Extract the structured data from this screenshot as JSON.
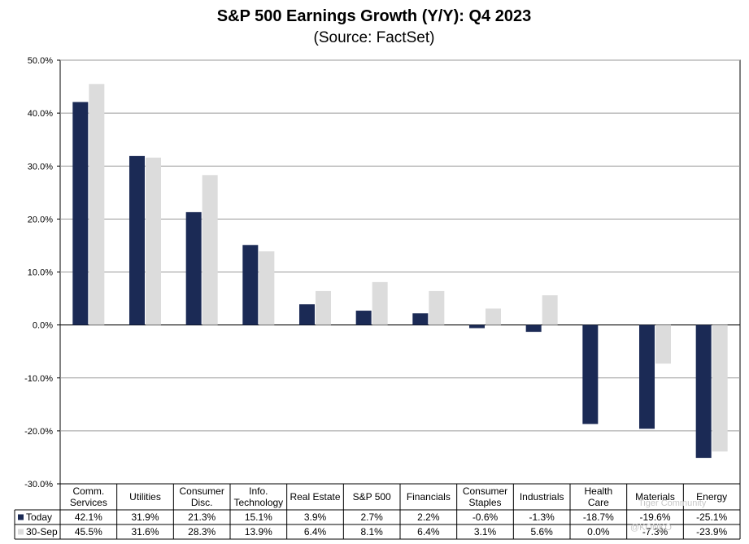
{
  "chart_data": {
    "type": "bar",
    "title": "S&P 500 Earnings Growth (Y/Y): Q4 2023",
    "subtitle": "(Source: FactSet)",
    "categories": [
      [
        "Comm.",
        "Services"
      ],
      [
        "Utilities"
      ],
      [
        "Consumer",
        "Disc."
      ],
      [
        "Info.",
        "Technology"
      ],
      [
        "Real Estate"
      ],
      [
        "S&P 500"
      ],
      [
        "Financials"
      ],
      [
        "Consumer",
        "Staples"
      ],
      [
        "Industrials"
      ],
      [
        "Health",
        "Care"
      ],
      [
        "Materials"
      ],
      [
        "Energy"
      ]
    ],
    "series": [
      {
        "name": "Today",
        "color": "#1b2a55",
        "values": [
          42.1,
          31.9,
          21.3,
          15.1,
          3.9,
          2.7,
          2.2,
          -0.6,
          -1.3,
          -18.7,
          -19.6,
          -25.1
        ],
        "labels": [
          "42.1%",
          "31.9%",
          "21.3%",
          "15.1%",
          "3.9%",
          "2.7%",
          "2.2%",
          "-0.6%",
          "-1.3%",
          "-18.7%",
          "-19.6%",
          "-25.1%"
        ]
      },
      {
        "name": "30-Sep",
        "color": "#dcdcdc",
        "values": [
          45.5,
          31.6,
          28.3,
          13.9,
          6.4,
          8.1,
          6.4,
          3.1,
          5.6,
          0.0,
          -7.3,
          -23.9
        ],
        "labels": [
          "45.5%",
          "31.6%",
          "28.3%",
          "13.9%",
          "6.4%",
          "8.1%",
          "6.4%",
          "3.1%",
          "5.6%",
          "0.0%",
          "-7.3%",
          "-23.9%"
        ]
      }
    ],
    "ylim": [
      -30,
      50
    ],
    "yticks": [
      50,
      40,
      30,
      20,
      10,
      0,
      -10,
      -20,
      -30
    ],
    "ytick_labels": [
      "50.0%",
      "40.0%",
      "30.0%",
      "20.0%",
      "10.0%",
      "0.0%",
      "-10.0%",
      "-20.0%",
      "-30.0%"
    ],
    "grid": true,
    "legend": "data-table"
  },
  "watermark": {
    "line1": "Tiger Community",
    "line2": "@KONKO"
  }
}
